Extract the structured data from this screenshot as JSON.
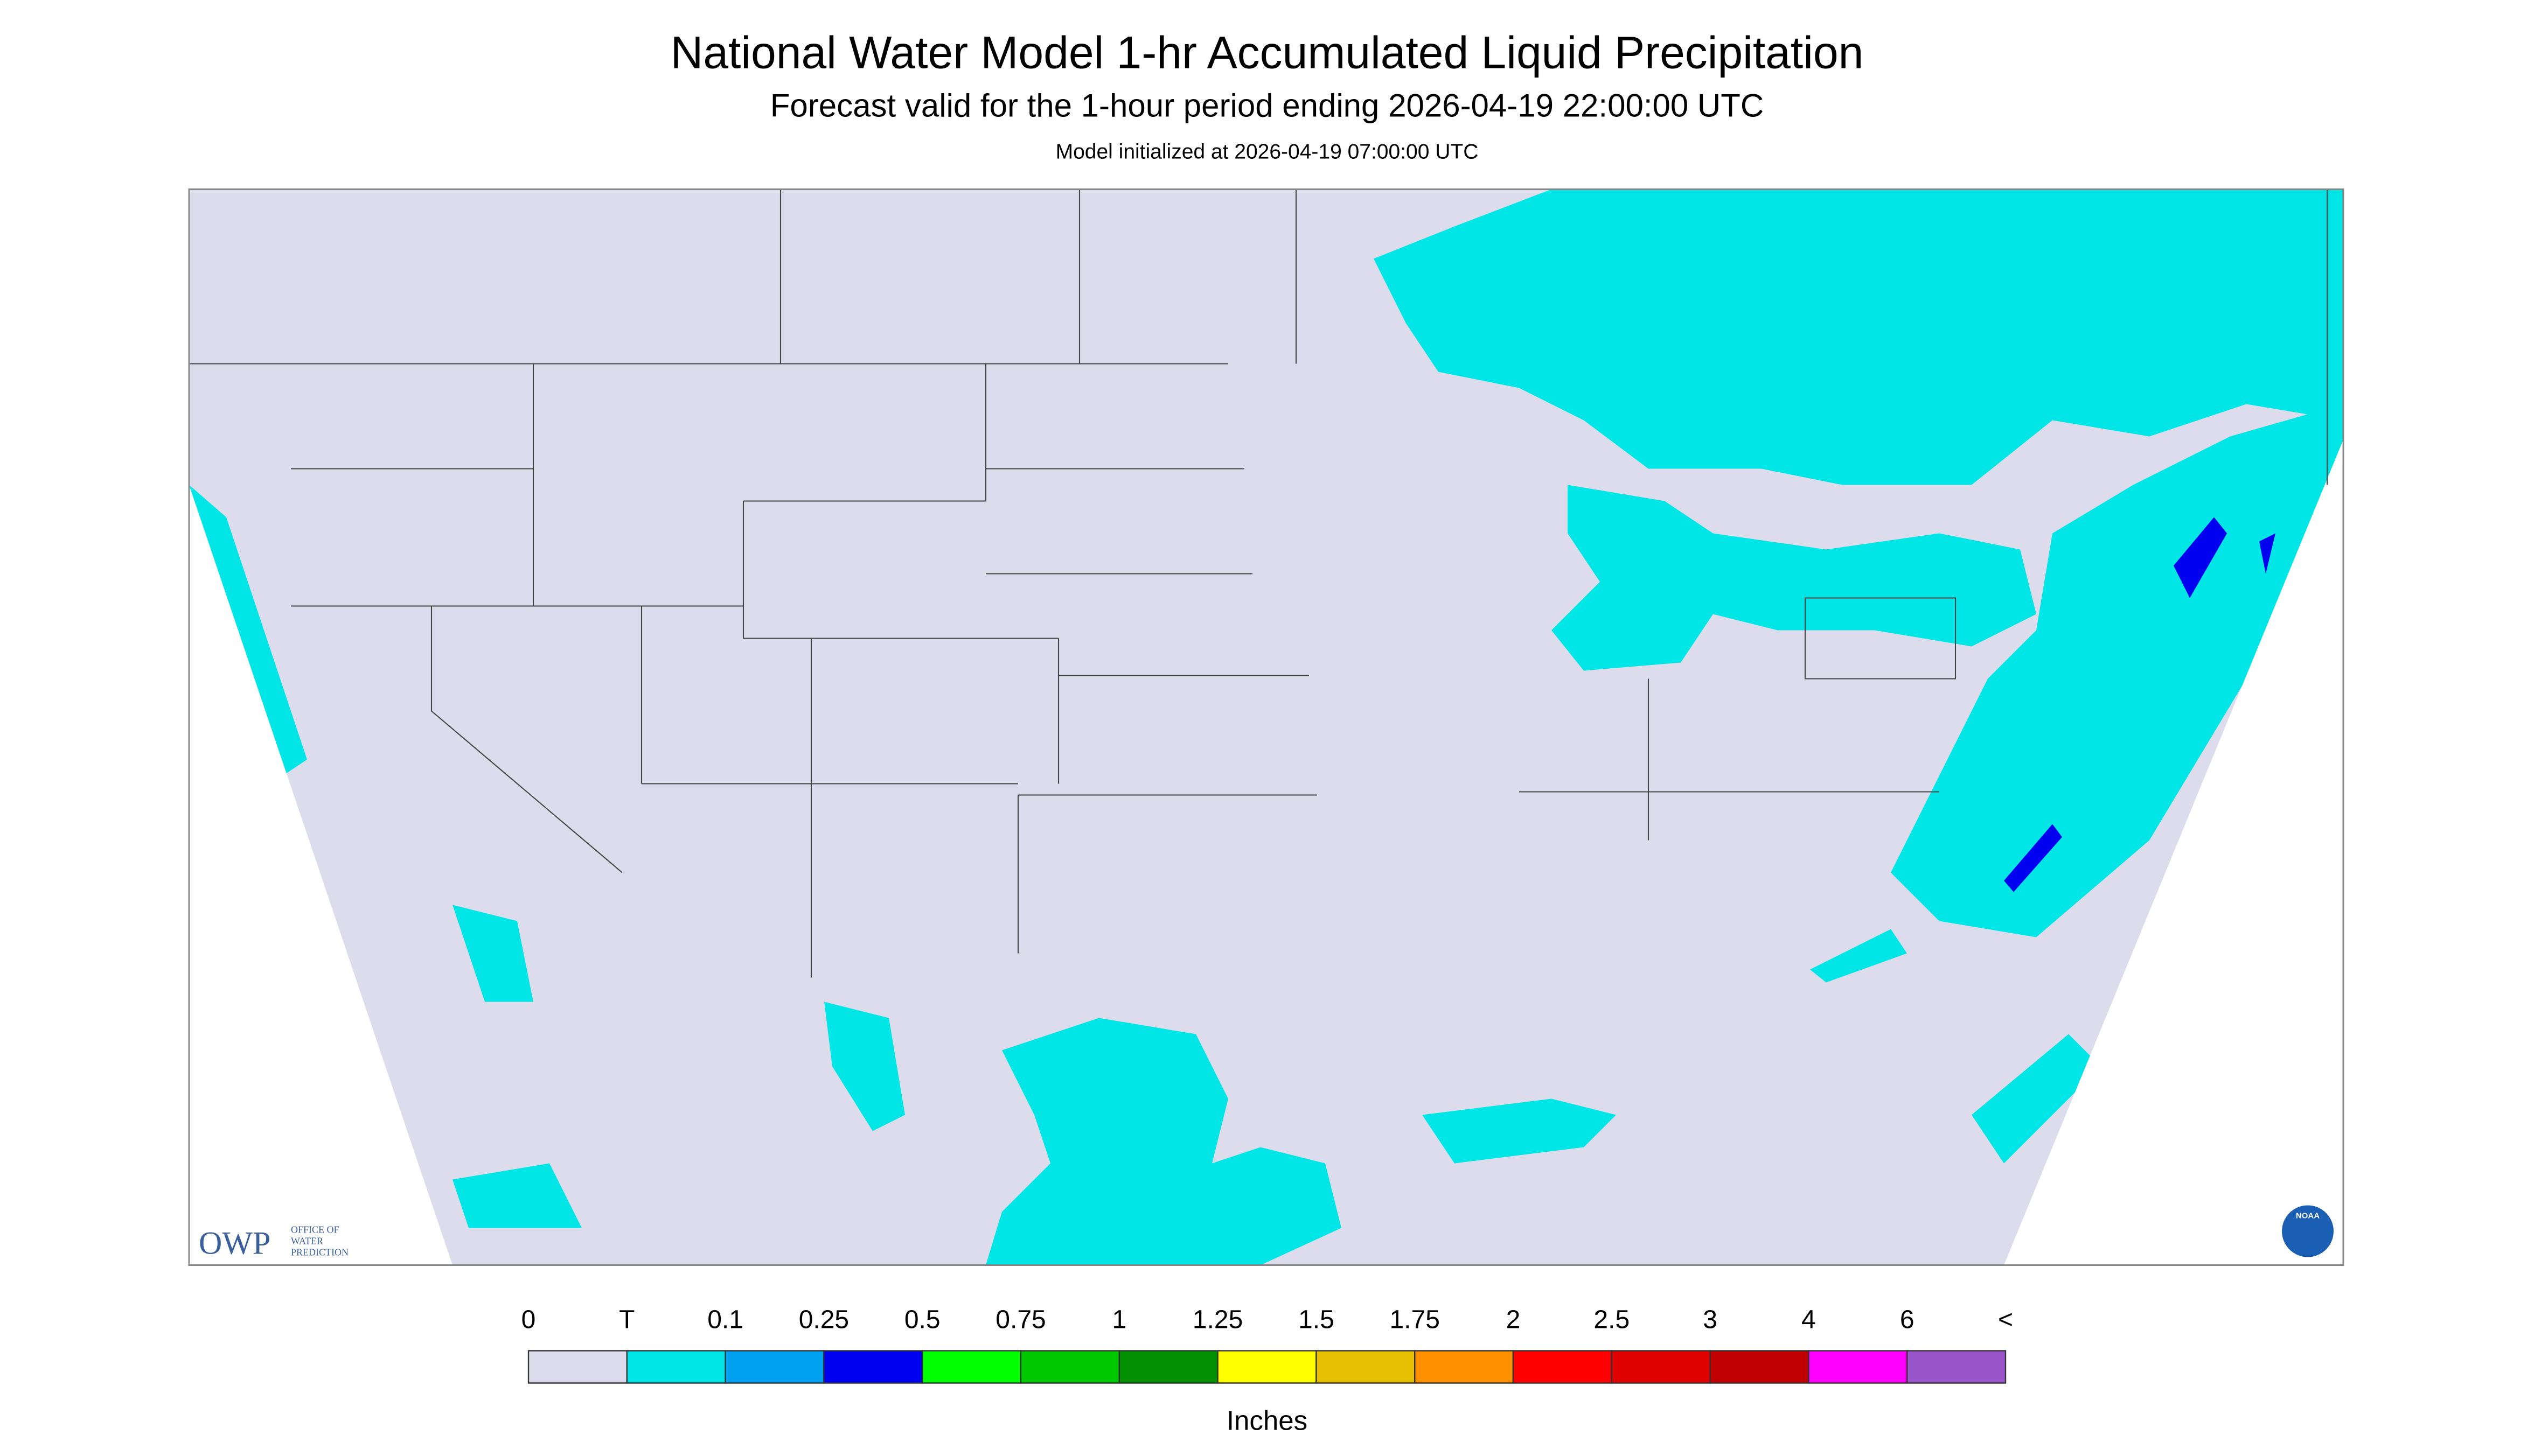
{
  "header": {
    "title": "National Water Model 1-hr Accumulated Liquid Precipitation",
    "subtitle": "Forecast valid for the 1-hour period ending 2026-04-19 22:00:00 UTC",
    "note": "Model initialized at 2026-04-19 07:00:00 UTC"
  },
  "logo": {
    "abbr": "OWP",
    "lines": [
      "OFFICE OF",
      "WATER",
      "PREDICTION"
    ],
    "badge": "NOAA"
  },
  "legend": {
    "labels": [
      "0",
      "T",
      "0.1",
      "0.25",
      "0.5",
      "0.75",
      "1",
      "1.25",
      "1.5",
      "1.75",
      "2",
      "2.5",
      "3",
      "4",
      "6",
      "<"
    ],
    "colors": [
      "#dcdcec",
      "#00e6e6",
      "#00a0f0",
      "#0000f0",
      "#00ff00",
      "#00c800",
      "#009000",
      "#ffff00",
      "#e6c000",
      "#ff9000",
      "#ff0000",
      "#e00000",
      "#c00000",
      "#ff00ff",
      "#9955c9"
    ],
    "unit": "Inches"
  }
}
